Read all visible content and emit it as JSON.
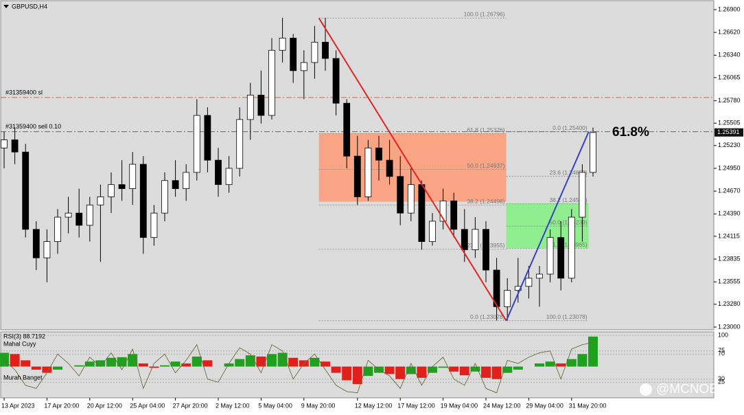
{
  "header": {
    "symbol": "GBPUSD,H4"
  },
  "watermark": "@MCNOER",
  "chart_data": [
    {
      "type": "candlestick",
      "categories": [
        "13 Apr 2023",
        null,
        null,
        null,
        "17 Apr 20:00",
        null,
        null,
        null,
        "20 Apr 12:00",
        null,
        null,
        null,
        "25 Apr 04:00",
        null,
        null,
        null,
        "27 Apr 20:00",
        null,
        null,
        null,
        "2 May 12:00",
        null,
        null,
        null,
        "5 May 04:00",
        null,
        null,
        null,
        "9 May 20:00",
        null,
        null,
        null,
        null,
        "12 May 12:00",
        null,
        null,
        null,
        "17 May 12:00",
        null,
        null,
        null,
        "19 May 04:00",
        null,
        null,
        null,
        "24 May 12:00",
        null,
        null,
        null,
        "29 May 04:00",
        null,
        null,
        null,
        "31 May 20:00",
        null,
        null
      ],
      "open": [
        1.252,
        1.253,
        1.2515,
        1.242,
        1.2385,
        1.2405,
        1.2435,
        1.244,
        1.2425,
        1.245,
        1.246,
        1.2475,
        1.247,
        1.25,
        1.241,
        1.244,
        1.248,
        1.247,
        1.249,
        1.256,
        1.2505,
        1.2475,
        1.2495,
        1.2555,
        1.2585,
        1.256,
        1.264,
        1.2655,
        1.2615,
        1.2625,
        1.265,
        1.263,
        1.2575,
        1.251,
        1.246,
        1.252,
        1.2505,
        1.2485,
        1.244,
        1.2475,
        1.2405,
        1.243,
        1.2455,
        1.242,
        1.2395,
        1.242,
        1.237,
        1.2325,
        1.2345,
        1.235,
        1.236,
        1.2365,
        1.241,
        1.236,
        1.2435,
        1.249
      ],
      "high": [
        1.254,
        1.2545,
        1.2525,
        1.243,
        1.242,
        1.2445,
        1.246,
        1.247,
        1.246,
        1.2475,
        1.249,
        1.2505,
        1.2515,
        1.251,
        1.245,
        1.249,
        1.2505,
        1.25,
        1.258,
        1.257,
        1.252,
        1.251,
        1.257,
        1.26,
        1.2615,
        1.2655,
        1.268,
        1.266,
        1.264,
        1.267,
        1.268,
        1.264,
        1.258,
        1.2535,
        1.253,
        1.2535,
        1.253,
        1.251,
        1.2495,
        1.248,
        1.244,
        1.247,
        1.2465,
        1.2445,
        1.2435,
        1.243,
        1.2385,
        1.236,
        1.2385,
        1.2375,
        1.2375,
        1.242,
        1.243,
        1.2445,
        1.25,
        1.2545
      ],
      "low": [
        1.2495,
        1.25,
        1.241,
        1.237,
        1.2355,
        1.239,
        1.2415,
        1.241,
        1.2405,
        1.238,
        1.244,
        1.2455,
        1.245,
        1.239,
        1.24,
        1.243,
        1.246,
        1.2455,
        1.248,
        1.249,
        1.246,
        1.2465,
        1.2485,
        1.253,
        1.255,
        1.2555,
        1.2625,
        1.26,
        1.258,
        1.2605,
        1.2615,
        1.256,
        1.2495,
        1.245,
        1.2455,
        1.248,
        1.2475,
        1.2425,
        1.243,
        1.2395,
        1.24,
        1.242,
        1.241,
        1.238,
        1.2385,
        1.2355,
        1.2308,
        1.2308,
        1.233,
        1.2335,
        1.2325,
        1.2355,
        1.2345,
        1.2355,
        1.2405,
        1.2485
      ],
      "close": [
        1.253,
        1.2515,
        1.242,
        1.2385,
        1.2405,
        1.2435,
        1.244,
        1.2425,
        1.245,
        1.246,
        1.2475,
        1.247,
        1.25,
        1.241,
        1.244,
        1.248,
        1.247,
        1.249,
        1.256,
        1.2505,
        1.2475,
        1.2495,
        1.2555,
        1.2585,
        1.256,
        1.264,
        1.2655,
        1.2615,
        1.2625,
        1.265,
        1.263,
        1.2575,
        1.251,
        1.246,
        1.252,
        1.2505,
        1.2485,
        1.244,
        1.2475,
        1.2405,
        1.243,
        1.2455,
        1.242,
        1.2395,
        1.242,
        1.237,
        1.2325,
        1.2345,
        1.235,
        1.236,
        1.2365,
        1.241,
        1.236,
        1.2435,
        1.249,
        1.2539
      ],
      "colors": {
        "up": "#ffffff",
        "down": "#000000",
        "outline": "#000000"
      },
      "ylim": [
        1.22966,
        1.27018
      ],
      "yticks": [
        {
          "value": 1.269,
          "label": "1.26900"
        },
        {
          "value": 1.2662,
          "label": "1.26620"
        },
        {
          "value": 1.2634,
          "label": "1.26340"
        },
        {
          "value": 1.26065,
          "label": "1.26065"
        },
        {
          "value": 1.2578,
          "label": "1.25780"
        },
        {
          "value": 1.25505,
          "label": "1.25505"
        },
        {
          "value": 1.2523,
          "label": "1.25230"
        },
        {
          "value": 1.2495,
          "label": "1.24950"
        },
        {
          "value": 1.2467,
          "label": "1.24670"
        },
        {
          "value": 1.2439,
          "label": "1.24390"
        },
        {
          "value": 1.24115,
          "label": "1.24115"
        },
        {
          "value": 1.23835,
          "label": "1.23835"
        },
        {
          "value": 1.23555,
          "label": "1.23555"
        },
        {
          "value": 1.2328,
          "label": "1.23280"
        },
        {
          "value": 1.23,
          "label": "1.23000"
        }
      ],
      "lines": [
        {
          "label": "#31359400 sl",
          "value": 1.2582,
          "color": "#e0603a"
        },
        {
          "label": "#31359400 sell 0.10",
          "value": 1.254,
          "color": "#2e8b3e"
        }
      ],
      "price_tag": {
        "label": "1.25391",
        "value": 1.25391
      },
      "zones": [
        {
          "color": "#f9a585",
          "x": [
            29.4,
            46.9
          ],
          "ylim": [
            1.2454,
            1.2538
          ]
        },
        {
          "color": "#90ee90",
          "x": [
            46.9,
            54.6
          ],
          "ylim": [
            1.2397,
            1.2452
          ]
        }
      ],
      "trendlines": [
        {
          "color": "#e02424",
          "x": [
            29.4,
            46.9
          ],
          "y": [
            1.26796,
            1.23078
          ]
        },
        {
          "color": "#3442c4",
          "x": [
            46.9,
            54.6
          ],
          "y": [
            1.23078,
            1.254
          ]
        }
      ],
      "fibonacci": [
        {
          "x": [
            29.4,
            46.9
          ],
          "levels": [
            {
              "label": "100.0 (1.26796)",
              "value": 1.26796
            },
            {
              "label": "61.8 (1.25376)",
              "value": 1.25376
            },
            {
              "label": "50.0 (1.24937)",
              "value": 1.24937
            },
            {
              "label": "38.2 (1.24498)",
              "value": 1.24498
            },
            {
              "label": "23.6 (1.23955)",
              "value": 1.23955
            },
            {
              "label": "0.0 (1.23078)",
              "value": 1.23078
            }
          ]
        },
        {
          "x": [
            46.9,
            54.6
          ],
          "levels": [
            {
              "label": "0.0 (1.25400)",
              "value": 1.254
            },
            {
              "label": "23.6 (1.24852)",
              "value": 1.24852
            },
            {
              "label": "38.2 (1.24513)",
              "value": 1.24513
            },
            {
              "label": "50.0 (1.24239)",
              "value": 1.24239
            },
            {
              "label": "61.8 (1.23965)",
              "value": 1.23965
            },
            {
              "label": "100.0 (1.23078)",
              "value": 1.23078
            }
          ]
        }
      ],
      "annotation": "61.8%"
    },
    {
      "type": "oscillator",
      "title": "RSI(3) 88.7192",
      "labels": {
        "upper": "Mahal Cuyy",
        "lower": "Murah Banget"
      },
      "ylim": [
        0,
        105.5
      ],
      "yticks": [
        100,
        75,
        70,
        30,
        25
      ],
      "baseline": 50,
      "line": {
        "color": "#6b6b3a",
        "values": [
          60,
          45,
          20,
          15,
          40,
          70,
          55,
          35,
          65,
          50,
          72,
          45,
          78,
          15,
          55,
          70,
          40,
          60,
          85,
          30,
          25,
          55,
          80,
          70,
          40,
          85,
          75,
          30,
          55,
          70,
          45,
          20,
          10,
          8,
          60,
          45,
          35,
          15,
          55,
          20,
          50,
          65,
          30,
          20,
          55,
          15,
          8,
          60,
          55,
          65,
          72,
          75,
          30,
          78,
          85,
          88.7192
        ]
      },
      "histogram": {
        "up": "#1fa01f",
        "down": "#e0201a",
        "values": [
          72,
          70,
          60,
          45,
          40,
          45,
          50,
          52,
          58,
          60,
          64,
          65,
          70,
          55,
          48,
          52,
          58,
          55,
          66,
          60,
          50,
          55,
          62,
          68,
          66,
          70,
          72,
          64,
          60,
          64,
          58,
          40,
          28,
          22,
          35,
          40,
          38,
          30,
          38,
          32,
          40,
          48,
          42,
          36,
          42,
          32,
          30,
          40,
          45,
          50,
          55,
          58,
          55,
          62,
          70,
          98
        ]
      }
    }
  ]
}
